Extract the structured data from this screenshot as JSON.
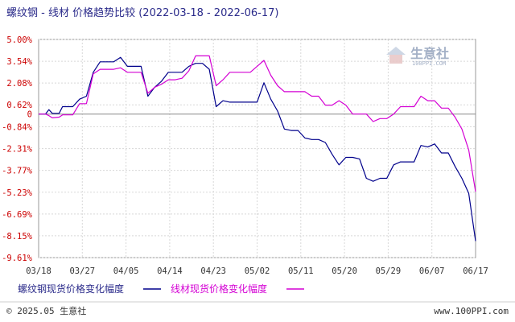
{
  "chart_data": {
    "type": "line",
    "title": "螺纹钢 - 线材 价格趋势比较",
    "date_range": "(2022-03-18 - 2022-06-17)",
    "y_ticks": [
      "5.00%",
      "3.54%",
      "2.08%",
      "0.62%",
      "0",
      "-0.84%",
      "-2.31%",
      "-3.77%",
      "-5.23%",
      "-6.69%",
      "-8.15%",
      "-9.61%"
    ],
    "y_tick_values": [
      5.0,
      3.54,
      2.08,
      0.62,
      0,
      -0.84,
      -2.31,
      -3.77,
      -5.23,
      -6.69,
      -8.15,
      -9.61
    ],
    "ylim": [
      -9.61,
      5.0
    ],
    "x_ticks": [
      "03/18",
      "03/27",
      "04/05",
      "04/14",
      "04/23",
      "05/02",
      "05/11",
      "05/20",
      "05/29",
      "06/07",
      "06/17"
    ],
    "grid": true,
    "legend_position": "bottom",
    "series": [
      {
        "name": "螺纹钢现货价格变化幅度",
        "color": "#00008b",
        "values": [
          [
            0,
            0
          ],
          [
            1,
            0
          ],
          [
            1.5,
            0.3
          ],
          [
            2,
            0.05
          ],
          [
            3,
            0.05
          ],
          [
            3.5,
            0.5
          ],
          [
            5,
            0.5
          ],
          [
            6,
            1.0
          ],
          [
            7,
            1.2
          ],
          [
            8,
            2.8
          ],
          [
            9,
            3.5
          ],
          [
            10,
            3.5
          ],
          [
            11,
            3.5
          ],
          [
            12,
            3.8
          ],
          [
            13,
            3.2
          ],
          [
            14,
            3.2
          ],
          [
            15,
            3.2
          ],
          [
            16,
            1.2
          ],
          [
            17,
            1.8
          ],
          [
            18,
            2.2
          ],
          [
            19,
            2.8
          ],
          [
            20,
            2.8
          ],
          [
            21,
            2.8
          ],
          [
            22,
            3.2
          ],
          [
            23,
            3.4
          ],
          [
            24,
            3.4
          ],
          [
            25,
            3.0
          ],
          [
            26,
            0.5
          ],
          [
            27,
            0.9
          ],
          [
            28,
            0.8
          ],
          [
            29,
            0.8
          ],
          [
            30,
            0.8
          ],
          [
            31,
            0.8
          ],
          [
            32,
            0.8
          ],
          [
            33,
            2.1
          ],
          [
            34,
            1.0
          ],
          [
            35,
            0.2
          ],
          [
            36,
            -1.0
          ],
          [
            37,
            -1.1
          ],
          [
            38,
            -1.1
          ],
          [
            39,
            -1.6
          ],
          [
            40,
            -1.7
          ],
          [
            41,
            -1.7
          ],
          [
            42,
            -1.9
          ],
          [
            43,
            -2.7
          ],
          [
            44,
            -3.4
          ],
          [
            45,
            -2.9
          ],
          [
            46,
            -2.9
          ],
          [
            47,
            -3.0
          ],
          [
            48,
            -4.3
          ],
          [
            49,
            -4.5
          ],
          [
            50,
            -4.3
          ],
          [
            51,
            -4.3
          ],
          [
            52,
            -3.4
          ],
          [
            53,
            -3.2
          ],
          [
            54,
            -3.2
          ],
          [
            55,
            -3.2
          ],
          [
            56,
            -2.1
          ],
          [
            57,
            -2.2
          ],
          [
            58,
            -2.0
          ],
          [
            59,
            -2.6
          ],
          [
            60,
            -2.6
          ],
          [
            61,
            -3.5
          ],
          [
            62,
            -4.3
          ],
          [
            63,
            -5.3
          ],
          [
            64,
            -8.5
          ]
        ]
      },
      {
        "name": "线材现货价格变化幅度",
        "color": "#d400d4",
        "values": [
          [
            0,
            0
          ],
          [
            1,
            0
          ],
          [
            1.5,
            -0.1
          ],
          [
            2,
            -0.25
          ],
          [
            3,
            -0.2
          ],
          [
            3.5,
            -0.05
          ],
          [
            5,
            -0.05
          ],
          [
            6,
            0.7
          ],
          [
            7,
            0.7
          ],
          [
            8,
            2.7
          ],
          [
            9,
            3.0
          ],
          [
            10,
            3.0
          ],
          [
            11,
            3.0
          ],
          [
            12,
            3.1
          ],
          [
            13,
            2.8
          ],
          [
            14,
            2.8
          ],
          [
            15,
            2.8
          ],
          [
            16,
            1.4
          ],
          [
            17,
            1.8
          ],
          [
            18,
            2.0
          ],
          [
            19,
            2.3
          ],
          [
            20,
            2.3
          ],
          [
            21,
            2.4
          ],
          [
            22,
            2.9
          ],
          [
            23,
            3.9
          ],
          [
            24,
            3.9
          ],
          [
            25,
            3.9
          ],
          [
            26,
            1.9
          ],
          [
            27,
            2.3
          ],
          [
            28,
            2.8
          ],
          [
            29,
            2.8
          ],
          [
            30,
            2.8
          ],
          [
            31,
            2.8
          ],
          [
            32,
            3.2
          ],
          [
            33,
            3.6
          ],
          [
            34,
            2.6
          ],
          [
            35,
            1.9
          ],
          [
            36,
            1.5
          ],
          [
            37,
            1.5
          ],
          [
            38,
            1.5
          ],
          [
            39,
            1.5
          ],
          [
            40,
            1.2
          ],
          [
            41,
            1.2
          ],
          [
            42,
            0.6
          ],
          [
            43,
            0.6
          ],
          [
            44,
            0.9
          ],
          [
            45,
            0.6
          ],
          [
            46,
            0.0
          ],
          [
            47,
            0.0
          ],
          [
            48,
            0.0
          ],
          [
            49,
            -0.5
          ],
          [
            50,
            -0.3
          ],
          [
            51,
            -0.3
          ],
          [
            52,
            0.0
          ],
          [
            53,
            0.5
          ],
          [
            54,
            0.5
          ],
          [
            55,
            0.5
          ],
          [
            56,
            1.2
          ],
          [
            57,
            0.9
          ],
          [
            58,
            0.9
          ],
          [
            59,
            0.4
          ],
          [
            60,
            0.4
          ],
          [
            61,
            -0.2
          ],
          [
            62,
            -1.0
          ],
          [
            63,
            -2.4
          ],
          [
            64,
            -5.2
          ]
        ]
      }
    ]
  },
  "watermark": {
    "text": "生意社",
    "url": "100PPI.COM"
  },
  "footer": {
    "copyright": "© 2025.05 生意社",
    "site": "www.100PPI.com"
  }
}
